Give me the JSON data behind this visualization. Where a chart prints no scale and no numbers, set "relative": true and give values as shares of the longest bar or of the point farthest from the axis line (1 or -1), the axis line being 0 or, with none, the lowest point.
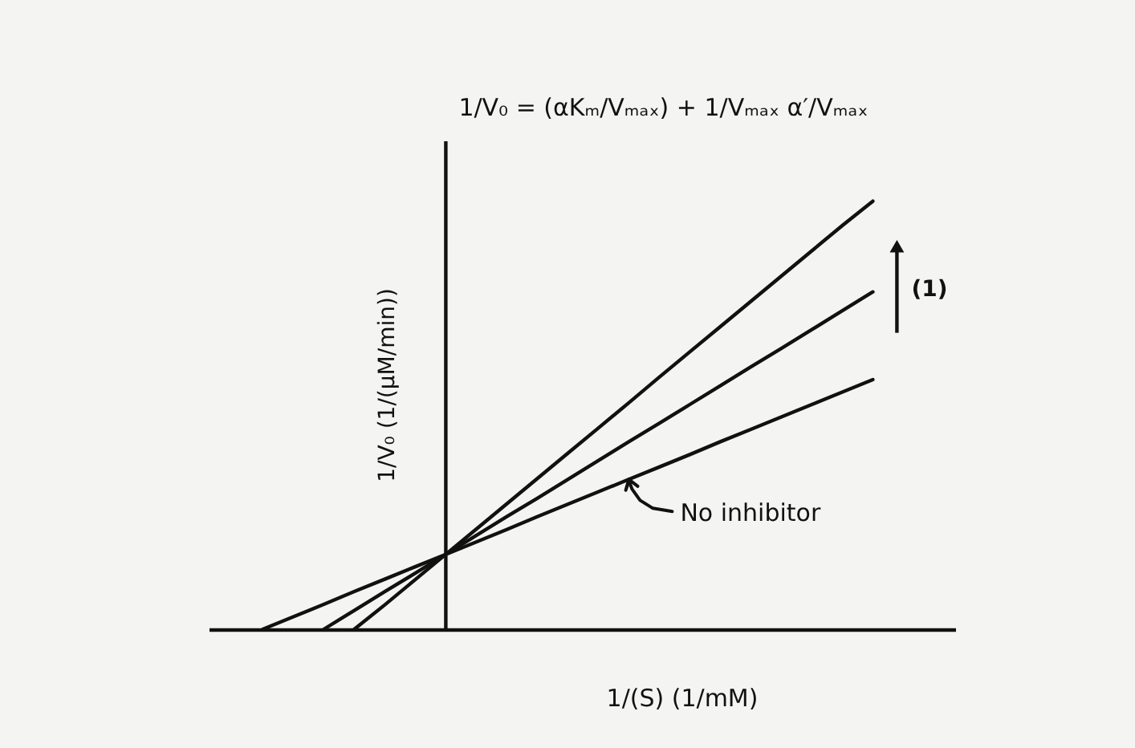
{
  "chart_data": {
    "type": "line",
    "relative": true,
    "title": "1/V₀ = (αKₘ/Vₘₐₓ) + 1/Vₘₐₓ α′/Vₘₐₓ",
    "xlabel": "1/(S) (1/mM)",
    "ylabel": "1/V₀ (1/(μM/min))",
    "categories": [
      null,
      null,
      null,
      null,
      null,
      null,
      null,
      null,
      null,
      null,
      null,
      null,
      null,
      null,
      null,
      null,
      null,
      null,
      null,
      null,
      null
    ],
    "series": [
      {
        "name": "No inhibitor",
        "color": "#111111",
        "values": [
          0,
          0.029,
          0.058,
          0.088,
          0.117,
          0.146,
          0.175,
          0.204,
          0.233,
          0.263,
          0.292,
          0.321,
          0.35,
          0.379,
          0.408,
          0.438,
          0.467,
          0.496,
          0.525,
          0.554,
          0.583
        ]
      },
      {
        "color": "#111111",
        "values": [
          null,
          null,
          0,
          0.044,
          0.088,
          0.131,
          0.175,
          0.219,
          0.263,
          0.306,
          0.35,
          0.394,
          0.438,
          0.481,
          0.525,
          0.569,
          0.613,
          0.656,
          0.7,
          0.744,
          0.788
        ]
      },
      {
        "color": "#111111",
        "values": [
          null,
          null,
          null,
          0,
          0.057,
          0.116,
          0.175,
          0.234,
          0.293,
          0.352,
          0.411,
          0.47,
          0.529,
          0.589,
          0.648,
          0.707,
          0.766,
          0.825,
          0.884,
          0.943,
          1
        ]
      }
    ],
    "annotations": [
      "(1)"
    ]
  }
}
